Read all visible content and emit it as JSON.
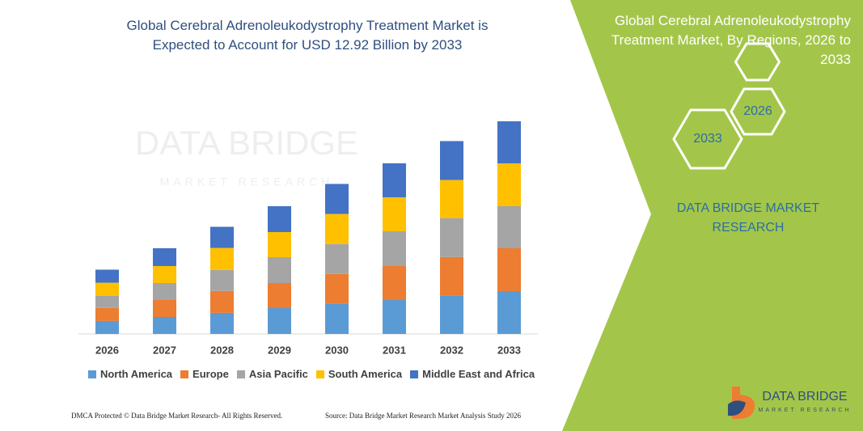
{
  "chart_data": {
    "type": "stacked_bar",
    "title": "Global Cerebral Adrenoleukodystrophy Treatment Market is Expected to Account for USD 12.92 Billion by 2033",
    "categories": [
      "2026",
      "2027",
      "2028",
      "2029",
      "2030",
      "2031",
      "2032",
      "2033"
    ],
    "series": [
      {
        "name": "North America",
        "color": "#5b9bd5",
        "values": [
          0.79,
          1.03,
          1.28,
          1.57,
          1.82,
          2.06,
          2.31,
          2.6
        ]
      },
      {
        "name": "Europe",
        "color": "#ed7d31",
        "values": [
          0.79,
          1.03,
          1.33,
          1.52,
          1.82,
          2.06,
          2.36,
          2.6
        ]
      },
      {
        "name": "Asia Pacific",
        "color": "#a5a5a5",
        "values": [
          0.74,
          1.03,
          1.28,
          1.57,
          1.82,
          2.11,
          2.36,
          2.55
        ]
      },
      {
        "name": "South America",
        "color": "#ffc000",
        "values": [
          0.79,
          1.03,
          1.33,
          1.52,
          1.82,
          2.06,
          2.31,
          2.6
        ]
      },
      {
        "name": "Middle East and Africa",
        "color": "#4472c4",
        "values": [
          0.79,
          1.08,
          1.28,
          1.57,
          1.82,
          2.06,
          2.36,
          2.55
        ]
      }
    ]
  },
  "panel": {
    "title": "Global Cerebral Adrenoleukodystrophy Treatment Market, By Regions, 2026 to 2033",
    "hexagons": [
      "2026",
      "2033"
    ],
    "brand": "DATA BRIDGE MARKET RESEARCH"
  },
  "watermark": {
    "name": "DATA BRIDGE",
    "tagline": "MARKET RESEARCH"
  },
  "logo": {
    "name": "DATA BRIDGE",
    "tagline": "MARKET RESEARCH"
  },
  "footer": {
    "copyright": "DMCA Protected © Data Bridge Market Research- All Rights Reserved.",
    "source": "Source: Data Bridge Market Research Market Analysis Study 2026"
  }
}
